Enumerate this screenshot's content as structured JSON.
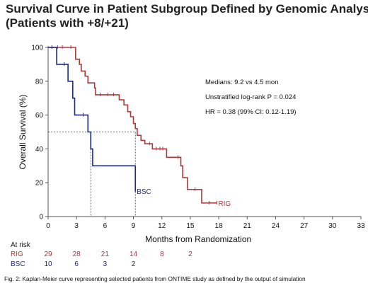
{
  "title_lines": [
    "Survival Curve in Patient Subgroup Defined by Genomic Analysis",
    "(Patients with +8/+21)"
  ],
  "caption": "Fig. 2: Kaplan-Meier curve representing selected patients from ONTIME study as defined by the output of simulation",
  "annotations": [
    "Medians: 9.2 vs 4.5 mon",
    "Unstratified log-rank P = 0.024",
    "HR = 0.38 (99% CI: 0.12-1.19)"
  ],
  "at_risk": {
    "label": "At risk",
    "times": [
      0,
      3,
      6,
      9,
      12,
      15
    ],
    "rows": [
      {
        "name": "RIG",
        "color": "#a83a3a",
        "values": [
          "29",
          "28",
          "21",
          "14",
          "8",
          "2"
        ]
      },
      {
        "name": "BSC",
        "color": "#1f2a80",
        "values": [
          "10",
          "6",
          "3",
          "2",
          "",
          ""
        ]
      }
    ]
  },
  "chart_data": {
    "type": "line",
    "subtype": "kaplan-meier-step",
    "xlabel": "Months from Randomization",
    "ylabel": "Overall Survival (%)",
    "xlim": [
      0,
      33
    ],
    "ylim": [
      0,
      100
    ],
    "xticks": [
      0,
      3,
      6,
      9,
      12,
      15,
      18,
      21,
      24,
      27,
      30,
      33
    ],
    "yticks": [
      0,
      20,
      40,
      60,
      80,
      100
    ],
    "grid": false,
    "medians": [
      {
        "series": "RIG",
        "x": 9.2,
        "y": 50
      },
      {
        "series": "BSC",
        "x": 4.5,
        "y": 50
      }
    ],
    "series": [
      {
        "name": "RIG",
        "color": "#a83a3a",
        "end_label": "RIG",
        "steps": [
          [
            0,
            100
          ],
          [
            2.9,
            93
          ],
          [
            3.3,
            90
          ],
          [
            3.5,
            86
          ],
          [
            3.9,
            83
          ],
          [
            4.2,
            79
          ],
          [
            4.9,
            76
          ],
          [
            5.0,
            72
          ],
          [
            7.5,
            69
          ],
          [
            8.0,
            66
          ],
          [
            8.4,
            62
          ],
          [
            8.7,
            59
          ],
          [
            9.0,
            55
          ],
          [
            9.2,
            52
          ],
          [
            9.4,
            48
          ],
          [
            9.8,
            45
          ],
          [
            10.2,
            43
          ],
          [
            11.0,
            40
          ],
          [
            12.5,
            35
          ],
          [
            14.0,
            30
          ],
          [
            14.2,
            23
          ],
          [
            14.7,
            16
          ],
          [
            16.2,
            8
          ],
          [
            17.8,
            8
          ]
        ],
        "censor_marks": [
          [
            1.0,
            100
          ],
          [
            1.5,
            100
          ],
          [
            2.4,
            100
          ],
          [
            5.5,
            72
          ],
          [
            6.3,
            72
          ],
          [
            6.9,
            72
          ],
          [
            10.7,
            43
          ],
          [
            11.4,
            40
          ],
          [
            11.8,
            40
          ],
          [
            12.1,
            40
          ],
          [
            13.7,
            35
          ],
          [
            15.5,
            16
          ],
          [
            17.0,
            8
          ],
          [
            17.8,
            8
          ]
        ]
      },
      {
        "name": "BSC",
        "color": "#1f2a80",
        "end_label": "BSC",
        "steps": [
          [
            0,
            100
          ],
          [
            0.9,
            90
          ],
          [
            2.1,
            80
          ],
          [
            2.6,
            70
          ],
          [
            2.8,
            60
          ],
          [
            4.2,
            50
          ],
          [
            4.5,
            40
          ],
          [
            4.7,
            30
          ],
          [
            9.2,
            15
          ]
        ],
        "censor_marks": [
          [
            0.4,
            100
          ],
          [
            1.7,
            90
          ],
          [
            3.7,
            60
          ],
          [
            9.2,
            15
          ]
        ]
      }
    ]
  }
}
